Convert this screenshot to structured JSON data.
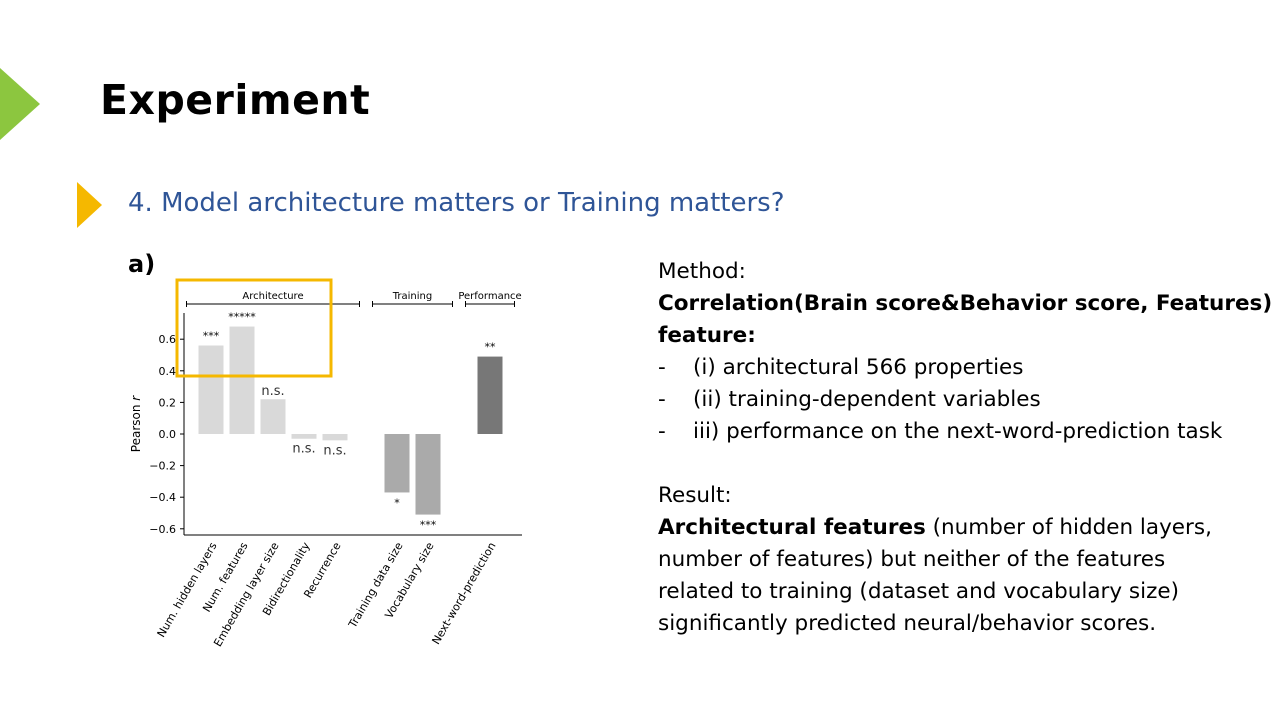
{
  "slide": {
    "title": "Experiment",
    "subtitle": "4. Model architecture matters or Training matters?"
  },
  "colors": {
    "green_arrow": "#8cc63f",
    "yellow_arrow": "#f5b800",
    "subtitle": "#2f5597",
    "highlight_box": "#f5b800",
    "bar_architecture": "#d9d9d9",
    "bar_training": "#aaaaaa",
    "bar_performance": "#777777"
  },
  "chart_data": {
    "type": "bar",
    "panel_label": "a)",
    "ylabel": "Pearson r",
    "ylim": [
      -0.65,
      0.78
    ],
    "yticks": [
      "0.6",
      "0.4",
      "0.2",
      "0.0",
      "−0.2",
      "−0.4",
      "−0.6"
    ],
    "ytick_values": [
      0.6,
      0.4,
      0.2,
      0.0,
      -0.2,
      -0.4,
      -0.6
    ],
    "groups": [
      {
        "label": "Architecture",
        "start": 0,
        "end": 4
      },
      {
        "label": "Training",
        "start": 5,
        "end": 6
      },
      {
        "label": "Performance",
        "start": 7,
        "end": 7
      }
    ],
    "categories": [
      "Num. hidden layers",
      "Num. features",
      "Embedding layer size",
      "Bidirectionality",
      "Recurrence",
      "Training data size",
      "Vocabulary size",
      "Next-word-prediction"
    ],
    "slots": [
      0,
      1,
      2,
      3,
      4,
      6,
      7,
      9
    ],
    "values": [
      0.56,
      0.68,
      0.22,
      -0.03,
      -0.04,
      -0.37,
      -0.51,
      0.49
    ],
    "significance": [
      "***",
      "*****",
      "n.s.",
      "n.s.",
      "n.s.",
      "*",
      "***",
      "**"
    ],
    "highlight": "Num. hidden layers, Num. features"
  },
  "text": {
    "method_heading": "Method:",
    "correlation": "Correlation(Brain score&Behavior score, Features)",
    "feature_heading": "feature:",
    "bullets": [
      "(i) architectural 566 properties",
      "(ii) training-dependent variables",
      "iii) performance on the next-word-prediction task"
    ],
    "result_heading": "Result:",
    "result_bold": "Architectural features",
    "result_line1_rest": " (number of hidden layers,",
    "result_line2": "number of features) but neither of the features",
    "result_line3": "related to training (dataset and vocabulary size)",
    "result_line4": "significantly predicted neural/behavior scores."
  }
}
